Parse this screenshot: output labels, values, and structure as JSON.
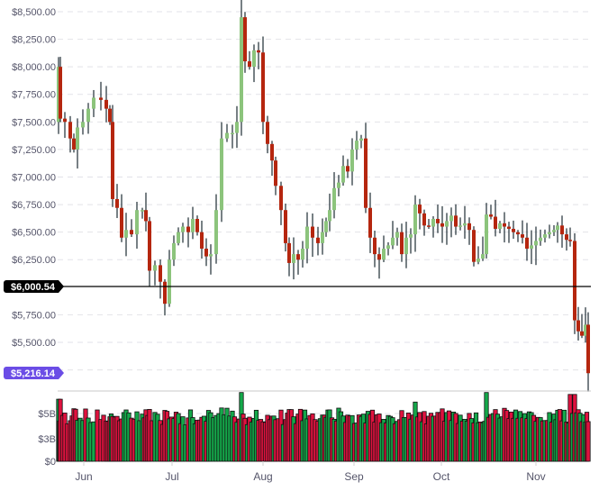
{
  "chart_data": {
    "type": "candlestick",
    "title": "",
    "xlabel": "",
    "ylabel": "",
    "price_axis": {
      "ticks": [
        "$8,500.00",
        "$8,250.00",
        "$8,000.00",
        "$7,750.00",
        "$7,500.00",
        "$7,250.00",
        "$7,000.00",
        "$6,750.00",
        "$6,500.00",
        "$6,250.00",
        "$5,750.00",
        "$5,500.00"
      ],
      "tick_values": [
        8500,
        8250,
        8000,
        7750,
        7500,
        7250,
        7000,
        6750,
        6500,
        6250,
        5750,
        5500
      ],
      "ylim": [
        5150,
        8550
      ],
      "grid": "dashed"
    },
    "volume_axis": {
      "ticks": [
        "$5B",
        "$3B",
        "$0"
      ],
      "tick_values": [
        5,
        3,
        0
      ],
      "ylim": [
        0,
        7.4
      ],
      "unit": "billion USD"
    },
    "x_axis": {
      "ticks": [
        "Jun",
        "Jul",
        "Aug",
        "Sep",
        "Oct",
        "Nov"
      ]
    },
    "reference_line": {
      "label": "$6,000.54",
      "value": 6000.54,
      "color": "#000000"
    },
    "last_price": {
      "label": "$5,216.14",
      "value": 5216.14,
      "color": "#6b4de6"
    },
    "colors": {
      "up_candle": "#8cc47c",
      "down_candle": "#b5260f",
      "wick": "#1d2b33",
      "up_volume": "#14a84a",
      "down_volume": "#e0123f",
      "volume_border": "#111111",
      "grid": "#e2e2e8"
    },
    "series": [
      {
        "name": "price_close_trend",
        "approx_points": [
          [
            "late May",
            7500
          ],
          [
            "early Jun",
            7650
          ],
          [
            "mid Jun",
            6500
          ],
          [
            "late Jun",
            6100
          ],
          [
            "early Jul",
            6550
          ],
          [
            "mid Jul",
            6350
          ],
          [
            "late Jul",
            8200
          ],
          [
            "early Aug",
            7000
          ],
          [
            "mid Aug",
            6300
          ],
          [
            "late Aug",
            6600
          ],
          [
            "early Sep",
            7350
          ],
          [
            "mid Sep",
            6300
          ],
          [
            "late Sep",
            6600
          ],
          [
            "early Oct",
            6550
          ],
          [
            "mid Oct",
            6250
          ],
          [
            "late Oct",
            6450
          ],
          [
            "early Nov",
            6400
          ],
          [
            "mid Nov",
            5650
          ],
          [
            "Nov end",
            5216
          ]
        ]
      },
      {
        "name": "volume_billions_trend",
        "approx_points": [
          [
            "late May",
            5.2
          ],
          [
            "Jun",
            4.6
          ],
          [
            "Jul",
            4.4
          ],
          [
            "late Jul",
            6.0
          ],
          [
            "Aug",
            4.8
          ],
          [
            "Sep",
            4.4
          ],
          [
            "Oct",
            4.6
          ],
          [
            "mid Oct",
            6.3
          ],
          [
            "Nov",
            4.4
          ],
          [
            "mid Nov",
            7.0
          ]
        ]
      }
    ]
  }
}
